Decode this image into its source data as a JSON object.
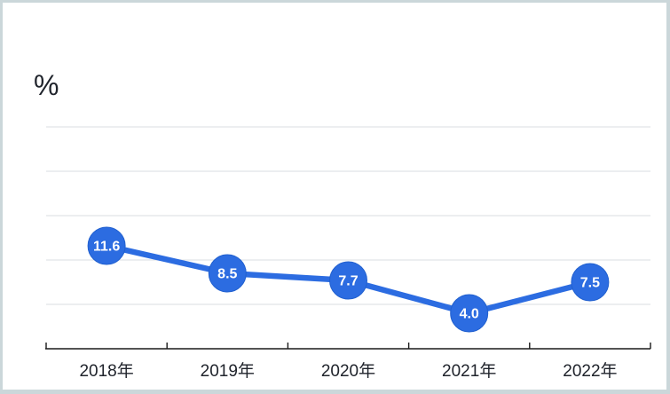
{
  "chart_data": {
    "type": "line",
    "title": "",
    "ylabel": "%",
    "xlabel": "",
    "categories": [
      "2018年",
      "2019年",
      "2020年",
      "2021年",
      "2022年"
    ],
    "values": [
      11.6,
      8.5,
      7.7,
      4.0,
      7.5
    ],
    "data_labels": [
      "11.6",
      "8.5",
      "7.7",
      "4.0",
      "7.5"
    ],
    "ylim": [
      0,
      30
    ],
    "gridline_values": [
      5,
      10,
      15,
      20,
      25
    ],
    "grid": true,
    "legend_position": "none",
    "colors": {
      "line": "#2c6ce1",
      "marker_fill": "#2c6ce1",
      "marker_edge": "#2160cf",
      "marker_label": "#ffffff",
      "gridline": "#d8dde0",
      "axis_line": "#1a1a1a",
      "axis_label": "#20242c",
      "frame_border": "#cbd7da",
      "background": "#ffffff"
    }
  }
}
